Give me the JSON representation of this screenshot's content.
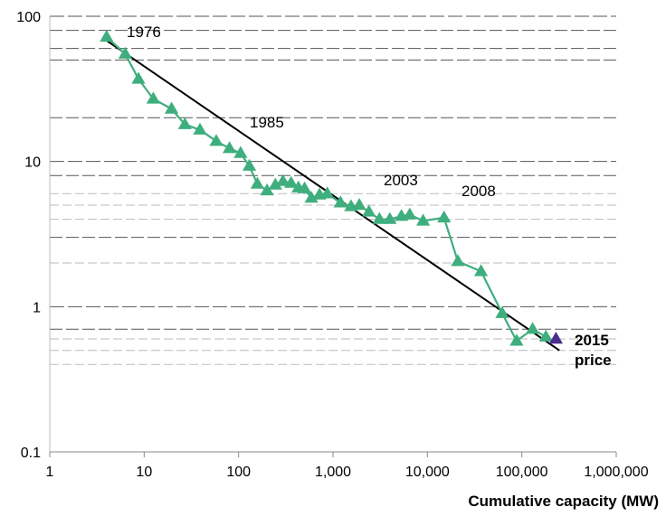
{
  "chart_data": {
    "type": "line",
    "title": "",
    "xlabel": "Cumulative capacity (MW)",
    "ylabel": "",
    "xscale": "log",
    "yscale": "log",
    "xlim": [
      1,
      1000000
    ],
    "ylim": [
      0.1,
      100
    ],
    "x_tick_labels": [
      "1",
      "10",
      "100",
      "1,000",
      "10,000",
      "100,000",
      "1,000,000"
    ],
    "y_tick_labels": [
      "0.1",
      "1",
      "10",
      "100"
    ],
    "grid": "horizontal dashed lines",
    "legend": "none",
    "colors": {
      "series": "#3fae7e",
      "highlight_point": "#4b2e8f",
      "trend": "#000000",
      "grid_major": "#555555",
      "grid_minor": "#bbbbbb"
    },
    "series": [
      {
        "x": [
          4,
          6.3,
          8.7,
          12.5,
          19.5,
          27,
          39,
          58,
          80,
          105,
          130,
          158,
          200,
          245,
          295,
          360,
          430,
          500,
          590,
          720,
          870,
          1200,
          1550,
          1900,
          2400,
          3100,
          4000,
          5300,
          6500,
          9000,
          15000,
          21000,
          37000,
          62000,
          88000,
          130000,
          180000
        ],
        "y": [
          72,
          55,
          37,
          27,
          23,
          18,
          16.5,
          13.8,
          12.3,
          11.4,
          9.3,
          7,
          6.3,
          6.9,
          7.3,
          7.1,
          6.6,
          6.5,
          5.6,
          5.9,
          6,
          5.2,
          4.9,
          5,
          4.5,
          4,
          4,
          4.2,
          4.3,
          3.9,
          4.1,
          2.05,
          1.75,
          0.9,
          0.58,
          0.7,
          0.62
        ]
      },
      {
        "x": [
          230000
        ],
        "y": [
          0.6
        ]
      }
    ],
    "trendline": {
      "x": [
        4,
        250000
      ],
      "y": [
        68,
        0.5
      ]
    },
    "annotations": [
      {
        "text": "1976"
      },
      {
        "text": "1985"
      },
      {
        "text": "2003"
      },
      {
        "text": "2008"
      },
      {
        "text": "2015"
      },
      {
        "text": "price"
      }
    ]
  }
}
